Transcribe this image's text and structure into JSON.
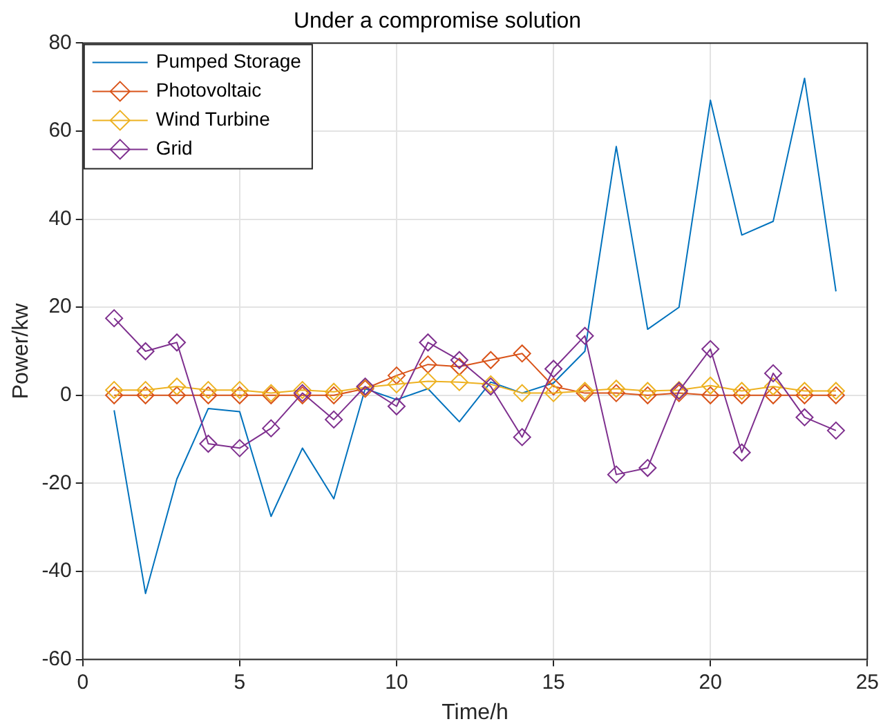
{
  "chart_data": {
    "type": "line",
    "title": "Under a compromise solution",
    "xlabel": "Time/h",
    "ylabel": "Power/kw",
    "xlim": [
      0,
      25
    ],
    "xticks": [
      0,
      5,
      10,
      15,
      20,
      25
    ],
    "ylim": [
      -60,
      80
    ],
    "yticks": [
      -60,
      -40,
      -20,
      0,
      20,
      40,
      60,
      80
    ],
    "grid": true,
    "legend": "top left",
    "line_style": "solid",
    "x": [
      1,
      2,
      3,
      4,
      5,
      6,
      7,
      8,
      9,
      10,
      11,
      12,
      13,
      14,
      15,
      16,
      17,
      18,
      19,
      20,
      21,
      22,
      23,
      24
    ],
    "series": [
      {
        "name": "Pumped Storage",
        "color": "#0072bd",
        "marker": "none",
        "values": [
          -3.4,
          -45,
          -19,
          -3,
          -3.7,
          -27.5,
          -12,
          -23.5,
          1.5,
          -1,
          1.5,
          -6,
          3,
          0.5,
          2.8,
          10,
          56.5,
          15,
          20,
          67,
          36.4,
          39.5,
          72,
          23.6
        ]
      },
      {
        "name": "Photovoltaic",
        "color": "#d95319",
        "marker": "diamond",
        "values": [
          0,
          0,
          0,
          0,
          0,
          0,
          0,
          0,
          1.5,
          4.5,
          7,
          6.5,
          8,
          9.5,
          2,
          0.5,
          0.5,
          0,
          0.5,
          0,
          0,
          0,
          0,
          0
        ]
      },
      {
        "name": "Wind Turbine",
        "color": "#edb120",
        "marker": "diamond",
        "values": [
          1.2,
          1.2,
          2,
          1.2,
          1.2,
          0.5,
          1.2,
          0.8,
          1.8,
          2.5,
          3.2,
          3,
          2.5,
          0.5,
          0.5,
          1,
          1.5,
          1,
          1.2,
          2.2,
          1,
          2,
          1,
          1
        ]
      },
      {
        "name": "Grid",
        "color": "#7e2f8e",
        "marker": "diamond",
        "values": [
          17.5,
          10,
          12,
          -11,
          -12,
          -7.5,
          0.5,
          -5.5,
          2,
          -2.5,
          12,
          8,
          2,
          -9.5,
          6,
          13.5,
          -18,
          -16.5,
          1,
          10.5,
          -13,
          5,
          -5,
          -8
        ]
      }
    ]
  }
}
